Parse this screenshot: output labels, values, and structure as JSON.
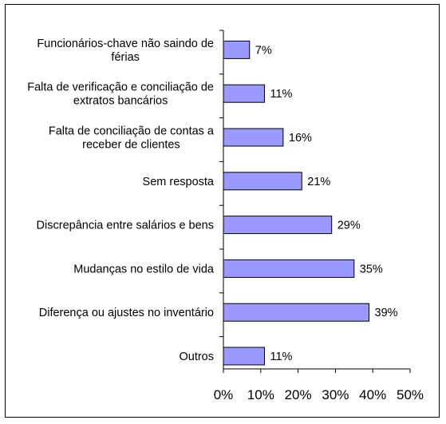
{
  "chart_data": {
    "type": "bar",
    "orientation": "horizontal",
    "categories": [
      [
        "Funcionários-chave não saindo de",
        "férias"
      ],
      [
        "Falta de verificação e conciliação de",
        "extratos bancários"
      ],
      [
        "Falta de conciliação de contas a",
        "receber de clientes"
      ],
      [
        "Sem resposta"
      ],
      [
        "Discrepância entre salários e bens"
      ],
      [
        "Mudanças no estilo de vida"
      ],
      [
        "Diferença ou ajustes no inventário"
      ],
      [
        "Outros"
      ]
    ],
    "values": [
      7,
      11,
      16,
      21,
      29,
      35,
      39,
      11
    ],
    "value_labels": [
      "7%",
      "11%",
      "16%",
      "21%",
      "29%",
      "35%",
      "39%",
      "11%"
    ],
    "x_ticks": [
      "0%",
      "10%",
      "20%",
      "30%",
      "40%",
      "50%"
    ],
    "xlim": [
      0,
      50
    ],
    "grid": false,
    "bar_color": "#9999ff",
    "bar_edge_color": "#000000"
  }
}
